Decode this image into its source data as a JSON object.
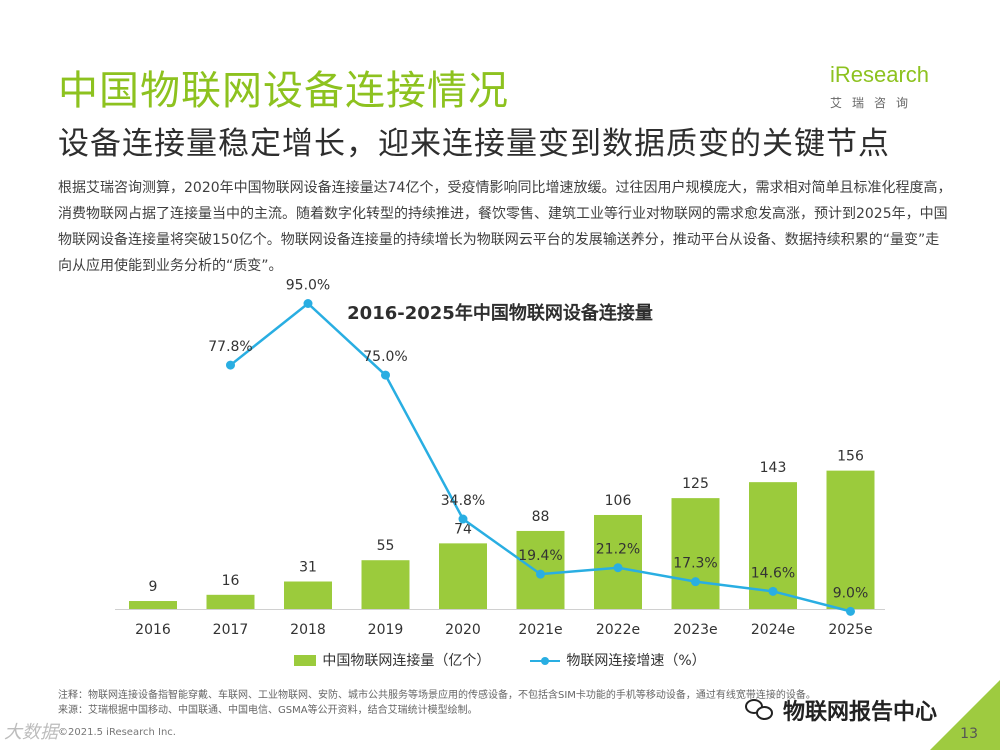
{
  "header": {
    "title": "中国物联网设备连接情况",
    "subtitle": "设备连接量稳定增长，迎来连接量变到数据质变的关键节点"
  },
  "logo": {
    "brand": "iResearch",
    "cn": "艾瑞咨询"
  },
  "description": "根据艾瑞咨询测算，2020年中国物联网设备连接量达74亿个，受疫情影响同比增速放缓。过往因用户规模庞大，需求相对简单且标准化程度高，消费物联网占据了连接量当中的主流。随着数字化转型的持续推进，餐饮零售、建筑工业等行业对物联网的需求愈发高涨，预计到2025年，中国物联网设备连接量将突破150亿个。物联网设备连接量的持续增长为物联网云平台的发展输送养分，推动平台从设备、数据持续积累的“量变”走向从应用使能到业务分析的“质变”。",
  "chart_data": {
    "type": "bar",
    "title": "2016-2025年中国物联网设备连接量",
    "categories": [
      "2016",
      "2017",
      "2018",
      "2019",
      "2020",
      "2021e",
      "2022e",
      "2023e",
      "2024e",
      "2025e"
    ],
    "series": [
      {
        "name": "中国物联网连接量（亿个）",
        "type": "bar",
        "values": [
          9,
          16,
          31,
          55,
          74,
          88,
          106,
          125,
          143,
          156
        ],
        "labels": [
          "9",
          "16",
          "31",
          "55",
          "74",
          "88",
          "106",
          "125",
          "143",
          "156"
        ],
        "color": "#9bcb3c"
      },
      {
        "name": "物联网连接增速（%）",
        "type": "line",
        "values": [
          null,
          77.8,
          95.0,
          75.0,
          34.8,
          19.4,
          21.2,
          17.3,
          14.6,
          9.0
        ],
        "labels": [
          "",
          "77.8%",
          "95.0%",
          "75.0%",
          "34.8%",
          "19.4%",
          "21.2%",
          "17.3%",
          "14.6%",
          "9.0%"
        ],
        "color": "#29aee2"
      }
    ],
    "legend_position": "bottom",
    "grid": false
  },
  "legend": {
    "bar_label": "中国物联网连接量（亿个）",
    "line_label": "物联网连接增速（%）"
  },
  "footer": {
    "note": "注释：物联网连接设备指智能穿戴、车联网、工业物联网、安防、城市公共服务等场景应用的传感设备，不包括含SIM卡功能的手机等移动设备，通过有线宽带连接的设备。",
    "source": "来源：艾瑞根据中国移动、中国联通、中国电信、GSMA等公开资料，结合艾瑞统计模型绘制。",
    "copyright": "©2021.5 iResearch Inc.",
    "page": "13"
  },
  "watermarks": {
    "left": "大数据",
    "right": "物联网报告中心"
  }
}
